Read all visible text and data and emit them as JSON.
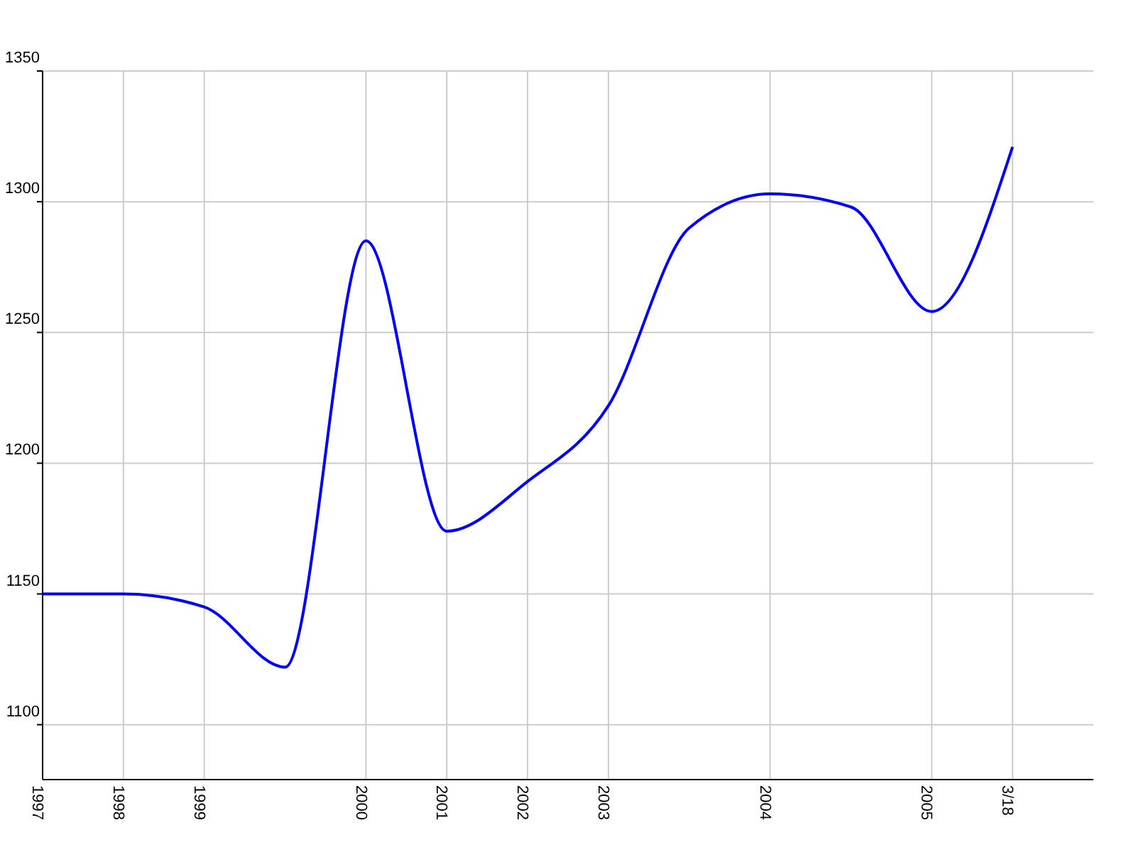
{
  "chart_data": {
    "type": "line",
    "categories": [
      "1997",
      "1998",
      "1999",
      null,
      "2000",
      "2001",
      "2002",
      "2003",
      null,
      "2004",
      null,
      "2005",
      "3/18"
    ],
    "series": [
      {
        "color": "#0000ff",
        "values": [
          1150,
          1150,
          1145,
          1122,
          1285,
          1174,
          1193,
          1222,
          1290,
          1303,
          1298,
          1258,
          1321
        ]
      }
    ],
    "ylim": [
      1079,
      1350
    ],
    "yticks": [
      1100,
      1150,
      1200,
      1250,
      1300,
      1350
    ],
    "grid": true,
    "marker": "none",
    "line_style": "solid"
  }
}
